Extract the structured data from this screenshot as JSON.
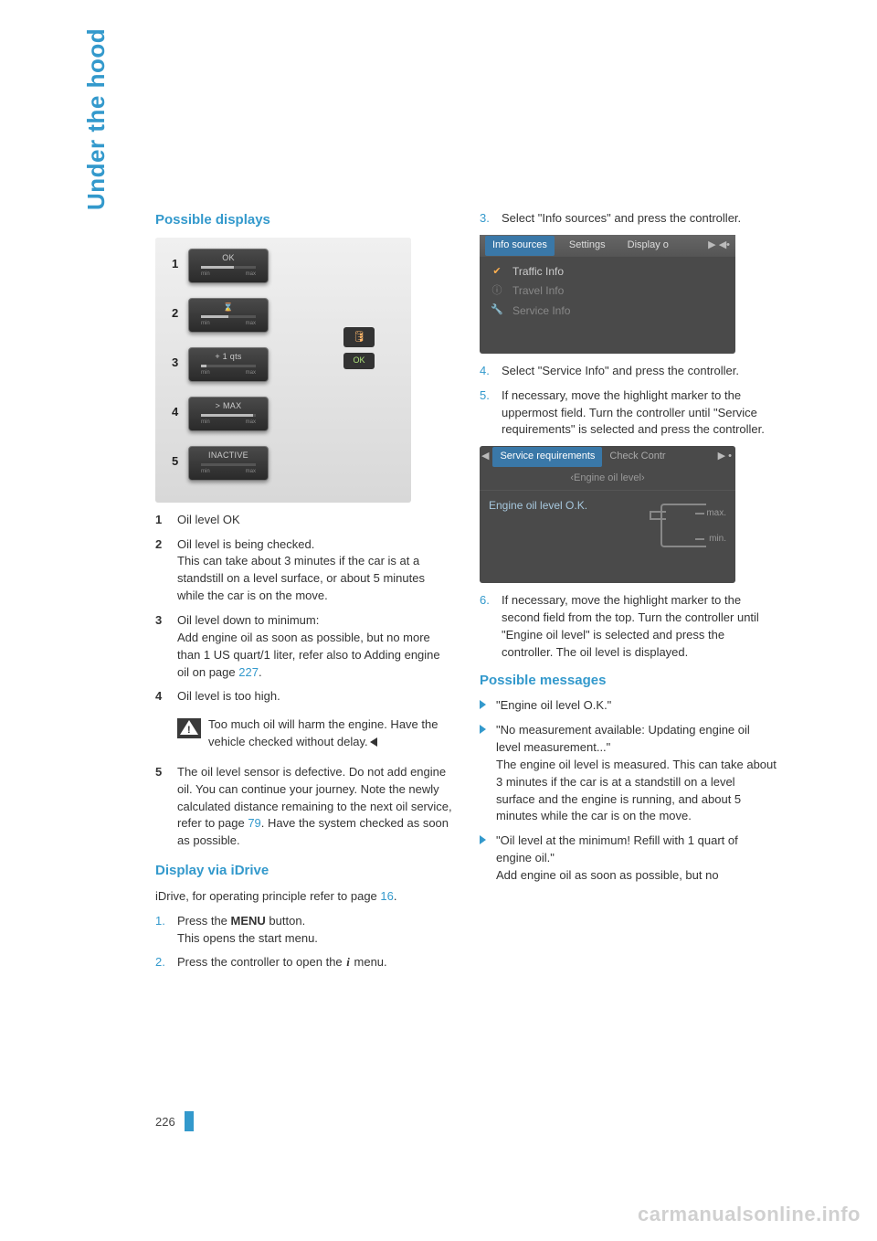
{
  "sideLabel": "Under the hood",
  "pageNumber": "226",
  "watermark": "carmanualsonline.info",
  "left": {
    "heading1": "Possible displays",
    "gauges": [
      {
        "num": "1",
        "status": "OK",
        "fill": 60
      },
      {
        "num": "2",
        "status": "⌛",
        "fill": 50
      },
      {
        "num": "3",
        "status": "+ 1 qts",
        "fill": 10
      },
      {
        "num": "4",
        "status": "> MAX",
        "fill": 95
      },
      {
        "num": "5",
        "status": "INACTIVE",
        "fill": 0
      }
    ],
    "oilIcon": "🛢",
    "okPill": "OK",
    "items": [
      {
        "n": "1",
        "text": "Oil level OK"
      },
      {
        "n": "2",
        "text": "Oil level is being checked.\nThis can take about 3 minutes if the car is at a standstill on a level surface, or about 5 minutes while the car is on the move."
      },
      {
        "n": "3",
        "text": "Oil level down to minimum:\nAdd engine oil as soon as possible, but no more than 1 US quart/1 liter, refer also to Adding engine oil on page ",
        "ref": "227",
        "after": "."
      },
      {
        "n": "4",
        "text": "Oil level is too high."
      }
    ],
    "warn": "Too much oil will harm the engine. Have the vehicle checked without delay.",
    "item5": {
      "n": "5",
      "textA": "The oil level sensor is defective.\nDo not add engine oil. You can continue your journey. Note the newly calculated distance remaining to the next oil service, refer to page ",
      "ref": "79",
      "textB": ". Have the system checked as soon as possible."
    },
    "heading2": "Display via iDrive",
    "idrivePre": "iDrive, for operating principle refer to page ",
    "idriveRef": "16",
    "idrivePost": ".",
    "steps": [
      {
        "n": "1.",
        "pre": "Press the ",
        "bold": "MENU",
        "post": " button.\nThis opens the start menu."
      },
      {
        "n": "2.",
        "pre": "Press the controller to open the ",
        "glyph": "i",
        "post": " menu."
      }
    ]
  },
  "right": {
    "steps1": [
      {
        "n": "3.",
        "text": "Select \"Info sources\" and press the controller."
      }
    ],
    "infoTabs": {
      "active": "Info sources",
      "b": "Settings",
      "c": "Display o"
    },
    "infoItems": [
      {
        "icon": "✔",
        "label": "Traffic Info",
        "on": true
      },
      {
        "icon": "ⓘ",
        "label": "Travel Info",
        "on": false
      },
      {
        "icon": "🔧",
        "label": "Service Info",
        "on": false
      }
    ],
    "steps2": [
      {
        "n": "4.",
        "text": "Select \"Service Info\" and press the controller."
      },
      {
        "n": "5.",
        "text": "If necessary, move the highlight marker to the uppermost field. Turn the controller until \"Service requirements\" is selected and press the controller."
      }
    ],
    "svc": {
      "tabA": "Service requirements",
      "tabB": "Check Contr",
      "sub": "‹Engine oil level›",
      "status": "Engine oil level O.K.",
      "max": "max.",
      "min": "min."
    },
    "steps3": [
      {
        "n": "6.",
        "text": "If necessary, move the highlight marker to the second field from the top. Turn the controller until \"Engine oil level\" is selected and press the controller. The oil level is displayed."
      }
    ],
    "heading3": "Possible messages",
    "bullets": [
      {
        "text": "\"Engine oil level O.K.\""
      },
      {
        "text": "\"No measurement available: Updating engine oil level measurement...\"\nThe engine oil level is measured. This can take about 3 minutes if the car is at a standstill on a level surface and the engine is running, and about 5 minutes while the car is on the move."
      },
      {
        "text": "\"Oil level at the minimum! Refill with 1 quart of engine oil.\"\nAdd engine oil as soon as possible, but no"
      }
    ]
  }
}
